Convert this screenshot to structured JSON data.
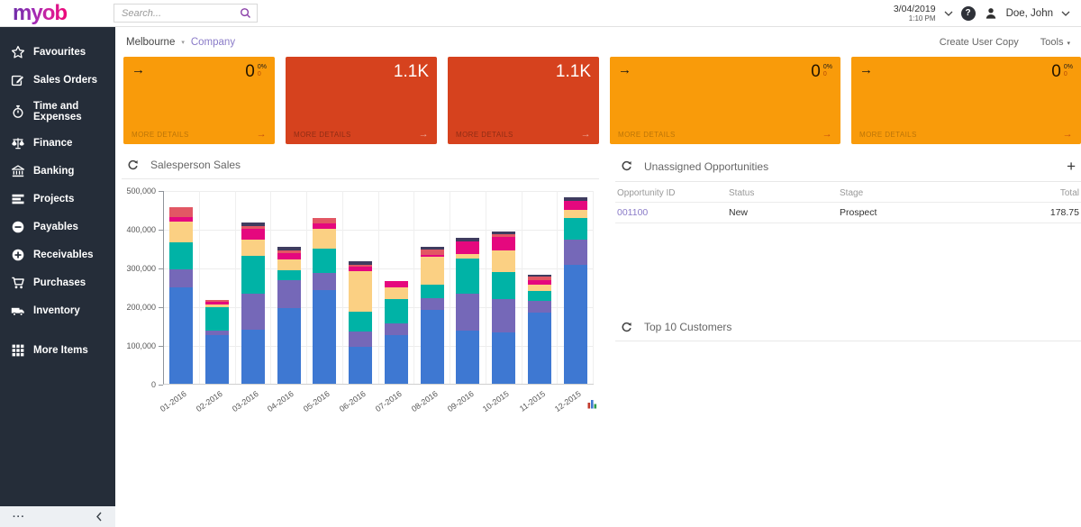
{
  "header": {
    "logo_text": "myob",
    "search": {
      "placeholder": "Search..."
    },
    "datetime": {
      "date": "3/04/2019",
      "time": "1:10 PM"
    },
    "user": {
      "name": "Doe, John"
    }
  },
  "toolbar": {
    "breadcrumb": {
      "site": "Melbourne",
      "page": "Company"
    },
    "create_user_copy_label": "Create User Copy",
    "tools_label": "Tools"
  },
  "sidebar": {
    "items": [
      {
        "label": "Favourites",
        "icon": "star-icon"
      },
      {
        "label": "Sales Orders",
        "icon": "edit-icon"
      },
      {
        "label": "Time and Expenses",
        "icon": "stopwatch-icon"
      },
      {
        "label": "Finance",
        "icon": "scales-icon"
      },
      {
        "label": "Banking",
        "icon": "bank-icon"
      },
      {
        "label": "Projects",
        "icon": "layers-icon"
      },
      {
        "label": "Payables",
        "icon": "minus-circle-icon"
      },
      {
        "label": "Receivables",
        "icon": "plus-circle-icon"
      },
      {
        "label": "Purchases",
        "icon": "cart-icon"
      },
      {
        "label": "Inventory",
        "icon": "truck-icon"
      },
      {
        "label": "More Items",
        "icon": "grid-icon"
      }
    ],
    "footer": {
      "ellipsis_glyph": "···",
      "collapse_glyph": "‹"
    }
  },
  "kpi_cards": [
    {
      "color": "orange",
      "has_arrow": true,
      "value": "0",
      "sub_top": "0%",
      "sub_bottom": "0",
      "more_label": "MORE DETAILS",
      "arrow_glyph": "→"
    },
    {
      "color": "red",
      "has_arrow": false,
      "value": "1.1K",
      "more_label": "MORE DETAILS",
      "arrow_glyph": "→"
    },
    {
      "color": "red",
      "has_arrow": false,
      "value": "1.1K",
      "more_label": "MORE DETAILS",
      "arrow_glyph": "→"
    },
    {
      "color": "orange",
      "has_arrow": true,
      "value": "0",
      "sub_top": "0%",
      "sub_bottom": "0",
      "more_label": "MORE DETAILS",
      "arrow_glyph": "→"
    },
    {
      "color": "orange",
      "has_arrow": true,
      "value": "0",
      "sub_top": "0%",
      "sub_bottom": "0",
      "more_label": "MORE DETAILS",
      "arrow_glyph": "→"
    }
  ],
  "panels": {
    "sales": {
      "title": "Salesperson Sales"
    },
    "opportunities": {
      "title": "Unassigned Opportunities",
      "add_glyph": "+",
      "columns": [
        "Opportunity ID",
        "Status",
        "Stage",
        "Total"
      ],
      "rows": [
        {
          "id": "001100",
          "status": "New",
          "stage": "Prospect",
          "total": "178.75"
        }
      ]
    },
    "top_customers": {
      "title": "Top 10 Customers"
    }
  },
  "colors": {
    "sidebar_bg": "#252D39",
    "card_orange": "#F99B0A",
    "card_red": "#D6421E",
    "link_purple": "#8A7BC8",
    "logo_gradient_start": "#6F2DA8",
    "logo_gradient_end": "#ED0677",
    "search_icon_purple": "#8A3FA8"
  },
  "chart_data": {
    "type": "bar",
    "subtype": "stacked",
    "title": "Salesperson Sales",
    "xlabel": "",
    "ylabel": "",
    "ylim": [
      0,
      500000
    ],
    "ytick_step": 100000,
    "grid": true,
    "legend_position": "none",
    "categories": [
      "01-2016",
      "02-2016",
      "03-2016",
      "04-2016",
      "05-2016",
      "06-2016",
      "07-2016",
      "08-2016",
      "09-2016",
      "10-2015",
      "11-2015",
      "12-2015"
    ],
    "series": [
      {
        "name": "segment-blue",
        "color": "#3E78D2",
        "values": [
          249000,
          125000,
          140000,
          195000,
          242000,
          95000,
          126000,
          190000,
          137000,
          133000,
          184000,
          307000
        ]
      },
      {
        "name": "segment-purple",
        "color": "#7568B8",
        "values": [
          46000,
          13000,
          93000,
          72000,
          43000,
          40000,
          30000,
          31000,
          96000,
          86000,
          30000,
          65000
        ]
      },
      {
        "name": "segment-teal",
        "color": "#00B3A6",
        "values": [
          70000,
          60000,
          97000,
          25000,
          65000,
          50000,
          63000,
          34000,
          90000,
          69000,
          26000,
          56000
        ]
      },
      {
        "name": "segment-amber",
        "color": "#FBD083",
        "values": [
          54000,
          7000,
          42000,
          28000,
          50000,
          105000,
          30000,
          73000,
          12000,
          56000,
          16000,
          21000
        ]
      },
      {
        "name": "segment-magenta",
        "color": "#E5087E",
        "values": [
          11000,
          6000,
          28000,
          17000,
          15000,
          12000,
          16000,
          4000,
          32000,
          35000,
          12000,
          23000
        ]
      },
      {
        "name": "segment-rose",
        "color": "#E25764",
        "values": [
          26000,
          5000,
          7000,
          7000,
          12000,
          4000,
          0,
          14000,
          0,
          8000,
          9000,
          0
        ]
      },
      {
        "name": "segment-navy",
        "color": "#3F3C5F",
        "values": [
          0,
          0,
          9000,
          10000,
          0,
          11000,
          0,
          8000,
          10000,
          7000,
          5000,
          9000
        ]
      }
    ]
  }
}
